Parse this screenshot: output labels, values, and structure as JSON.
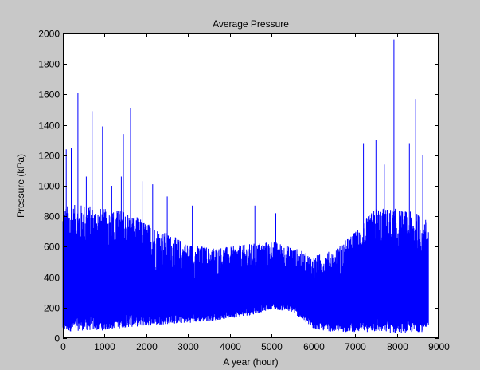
{
  "chart_data": {
    "type": "line",
    "title": "Average Pressure",
    "xlabel": "A year (hour)",
    "ylabel": "Pressure (kPa)",
    "xlim": [
      0,
      9000
    ],
    "ylim": [
      0,
      2000
    ],
    "xticks": [
      "0",
      "1000",
      "2000",
      "3000",
      "4000",
      "5000",
      "6000",
      "7000",
      "8000",
      "9000"
    ],
    "yticks": [
      "0",
      "200",
      "400",
      "600",
      "800",
      "1000",
      "1200",
      "1400",
      "1600",
      "1800",
      "2000"
    ],
    "grid": false,
    "legend": "none",
    "series": [
      {
        "x_start": 1,
        "x_end": 8760,
        "color": "#0000ff",
        "envelope": {
          "x": [
            0,
            500,
            1000,
            1500,
            2000,
            2500,
            3000,
            3500,
            4000,
            4500,
            5000,
            5500,
            6000,
            6500,
            7000,
            7500,
            8000,
            8500,
            8760
          ],
          "upper": [
            870,
            880,
            850,
            840,
            760,
            690,
            620,
            600,
            600,
            620,
            640,
            600,
            540,
            580,
            700,
            860,
            850,
            820,
            780
          ],
          "lower": [
            40,
            50,
            50,
            70,
            80,
            90,
            100,
            110,
            130,
            150,
            190,
            170,
            60,
            40,
            40,
            40,
            30,
            40,
            40
          ]
        },
        "peaks": [
          {
            "x": 80,
            "y": 1240
          },
          {
            "x": 200,
            "y": 1250
          },
          {
            "x": 360,
            "y": 1610
          },
          {
            "x": 560,
            "y": 1060
          },
          {
            "x": 700,
            "y": 1490
          },
          {
            "x": 950,
            "y": 1390
          },
          {
            "x": 1170,
            "y": 1000
          },
          {
            "x": 1400,
            "y": 1060
          },
          {
            "x": 1450,
            "y": 1340
          },
          {
            "x": 1620,
            "y": 1510
          },
          {
            "x": 1900,
            "y": 1030
          },
          {
            "x": 2150,
            "y": 1010
          },
          {
            "x": 2500,
            "y": 930
          },
          {
            "x": 3100,
            "y": 870
          },
          {
            "x": 4600,
            "y": 870
          },
          {
            "x": 5100,
            "y": 820
          },
          {
            "x": 6950,
            "y": 1100
          },
          {
            "x": 7200,
            "y": 1280
          },
          {
            "x": 7500,
            "y": 1300
          },
          {
            "x": 7700,
            "y": 1140
          },
          {
            "x": 7930,
            "y": 1960
          },
          {
            "x": 8170,
            "y": 1610
          },
          {
            "x": 8300,
            "y": 1280
          },
          {
            "x": 8450,
            "y": 1570
          },
          {
            "x": 8620,
            "y": 1200
          }
        ]
      }
    ]
  }
}
